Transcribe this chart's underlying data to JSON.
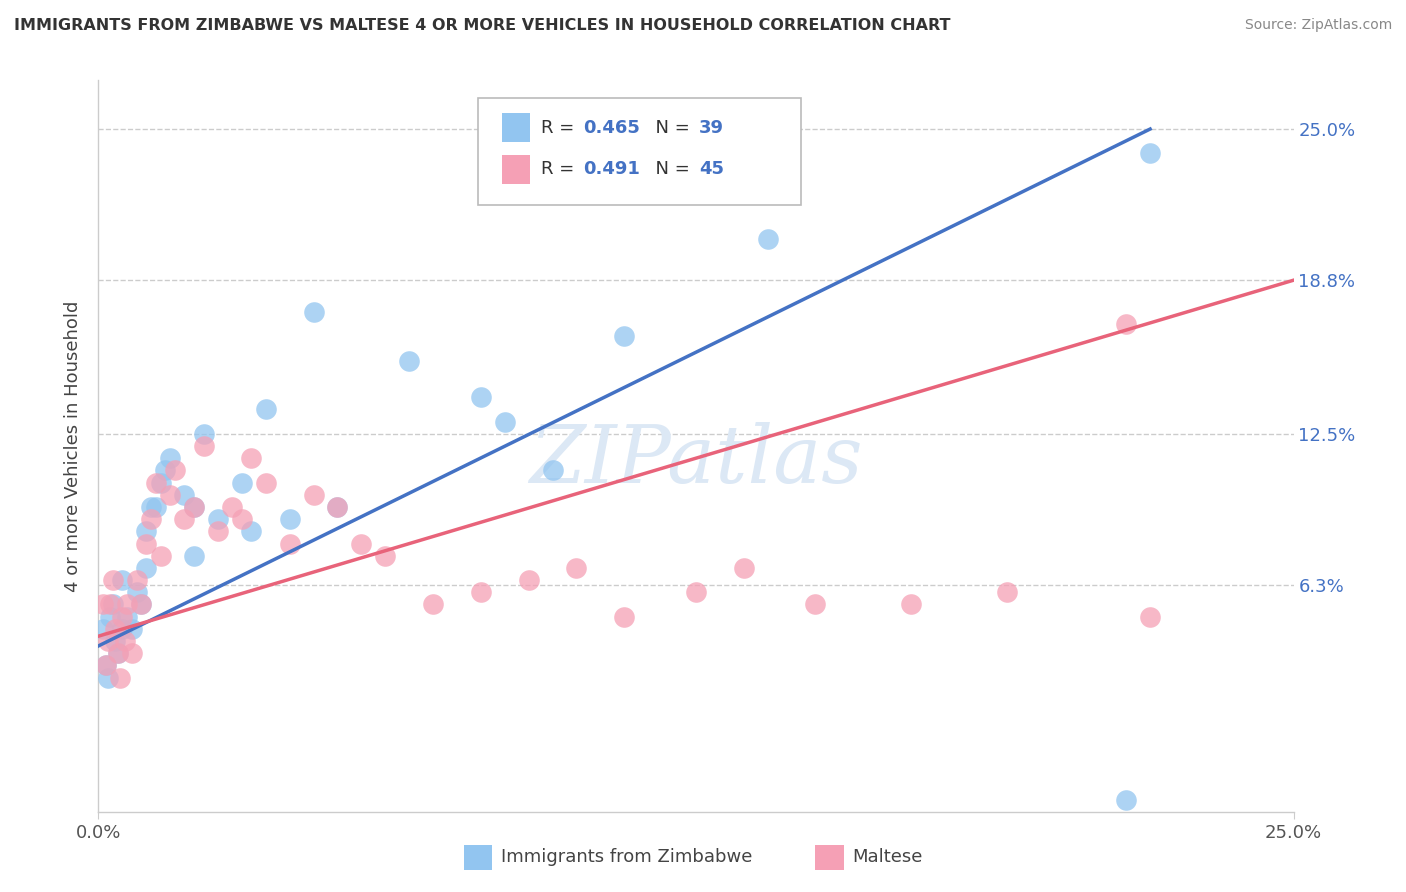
{
  "title": "IMMIGRANTS FROM ZIMBABWE VS MALTESE 4 OR MORE VEHICLES IN HOUSEHOLD CORRELATION CHART",
  "source": "Source: ZipAtlas.com",
  "ylabel": "4 or more Vehicles in Household",
  "xlim": [
    0.0,
    25.0
  ],
  "ylim": [
    -3.0,
    27.0
  ],
  "ytick_values": [
    6.3,
    12.5,
    18.8,
    25.0
  ],
  "ytick_labels": [
    "6.3%",
    "12.5%",
    "18.8%",
    "25.0%"
  ],
  "xtick_values": [
    0.0,
    25.0
  ],
  "xtick_labels": [
    "0.0%",
    "25.0%"
  ],
  "watermark": "ZIPatlas",
  "legend_R1": "0.465",
  "legend_N1": "39",
  "legend_R2": "0.491",
  "legend_N2": "45",
  "color_blue": "#92C5F0",
  "color_pink": "#F5A0B5",
  "line_blue": "#4472C4",
  "line_pink": "#E8637A",
  "legend_label1": "Immigrants from Zimbabwe",
  "legend_label2": "Maltese",
  "blue_x": [
    0.1,
    0.15,
    0.2,
    0.25,
    0.3,
    0.35,
    0.4,
    0.5,
    0.5,
    0.6,
    0.7,
    0.8,
    0.9,
    1.0,
    1.0,
    1.1,
    1.2,
    1.3,
    1.4,
    1.5,
    1.8,
    2.0,
    2.0,
    2.2,
    2.5,
    3.0,
    3.2,
    3.5,
    4.0,
    4.5,
    5.0,
    6.5,
    8.0,
    8.5,
    9.5,
    11.0,
    14.0,
    21.5,
    22.0
  ],
  "blue_y": [
    4.5,
    3.0,
    2.5,
    5.0,
    5.5,
    4.0,
    3.5,
    6.5,
    4.5,
    5.0,
    4.5,
    6.0,
    5.5,
    8.5,
    7.0,
    9.5,
    9.5,
    10.5,
    11.0,
    11.5,
    10.0,
    9.5,
    7.5,
    12.5,
    9.0,
    10.5,
    8.5,
    13.5,
    9.0,
    17.5,
    9.5,
    15.5,
    14.0,
    13.0,
    11.0,
    16.5,
    20.5,
    -2.5,
    24.0
  ],
  "pink_x": [
    0.1,
    0.15,
    0.2,
    0.25,
    0.3,
    0.35,
    0.4,
    0.45,
    0.5,
    0.55,
    0.6,
    0.7,
    0.8,
    0.9,
    1.0,
    1.1,
    1.2,
    1.3,
    1.5,
    1.6,
    1.8,
    2.0,
    2.2,
    2.5,
    2.8,
    3.0,
    3.2,
    3.5,
    4.0,
    4.5,
    5.0,
    5.5,
    6.0,
    7.0,
    8.0,
    9.0,
    10.0,
    11.0,
    12.5,
    13.5,
    15.0,
    17.0,
    19.0,
    21.5,
    22.0
  ],
  "pink_y": [
    5.5,
    3.0,
    4.0,
    5.5,
    6.5,
    4.5,
    3.5,
    2.5,
    5.0,
    4.0,
    5.5,
    3.5,
    6.5,
    5.5,
    8.0,
    9.0,
    10.5,
    7.5,
    10.0,
    11.0,
    9.0,
    9.5,
    12.0,
    8.5,
    9.5,
    9.0,
    11.5,
    10.5,
    8.0,
    10.0,
    9.5,
    8.0,
    7.5,
    5.5,
    6.0,
    6.5,
    7.0,
    5.0,
    6.0,
    7.0,
    5.5,
    5.5,
    6.0,
    17.0,
    5.0
  ],
  "blue_line_x0": 0.0,
  "blue_line_y0": 3.8,
  "blue_line_x1": 22.0,
  "blue_line_y1": 25.0,
  "pink_line_x0": 0.0,
  "pink_line_y0": 4.2,
  "pink_line_x1": 25.0,
  "pink_line_y1": 18.8
}
